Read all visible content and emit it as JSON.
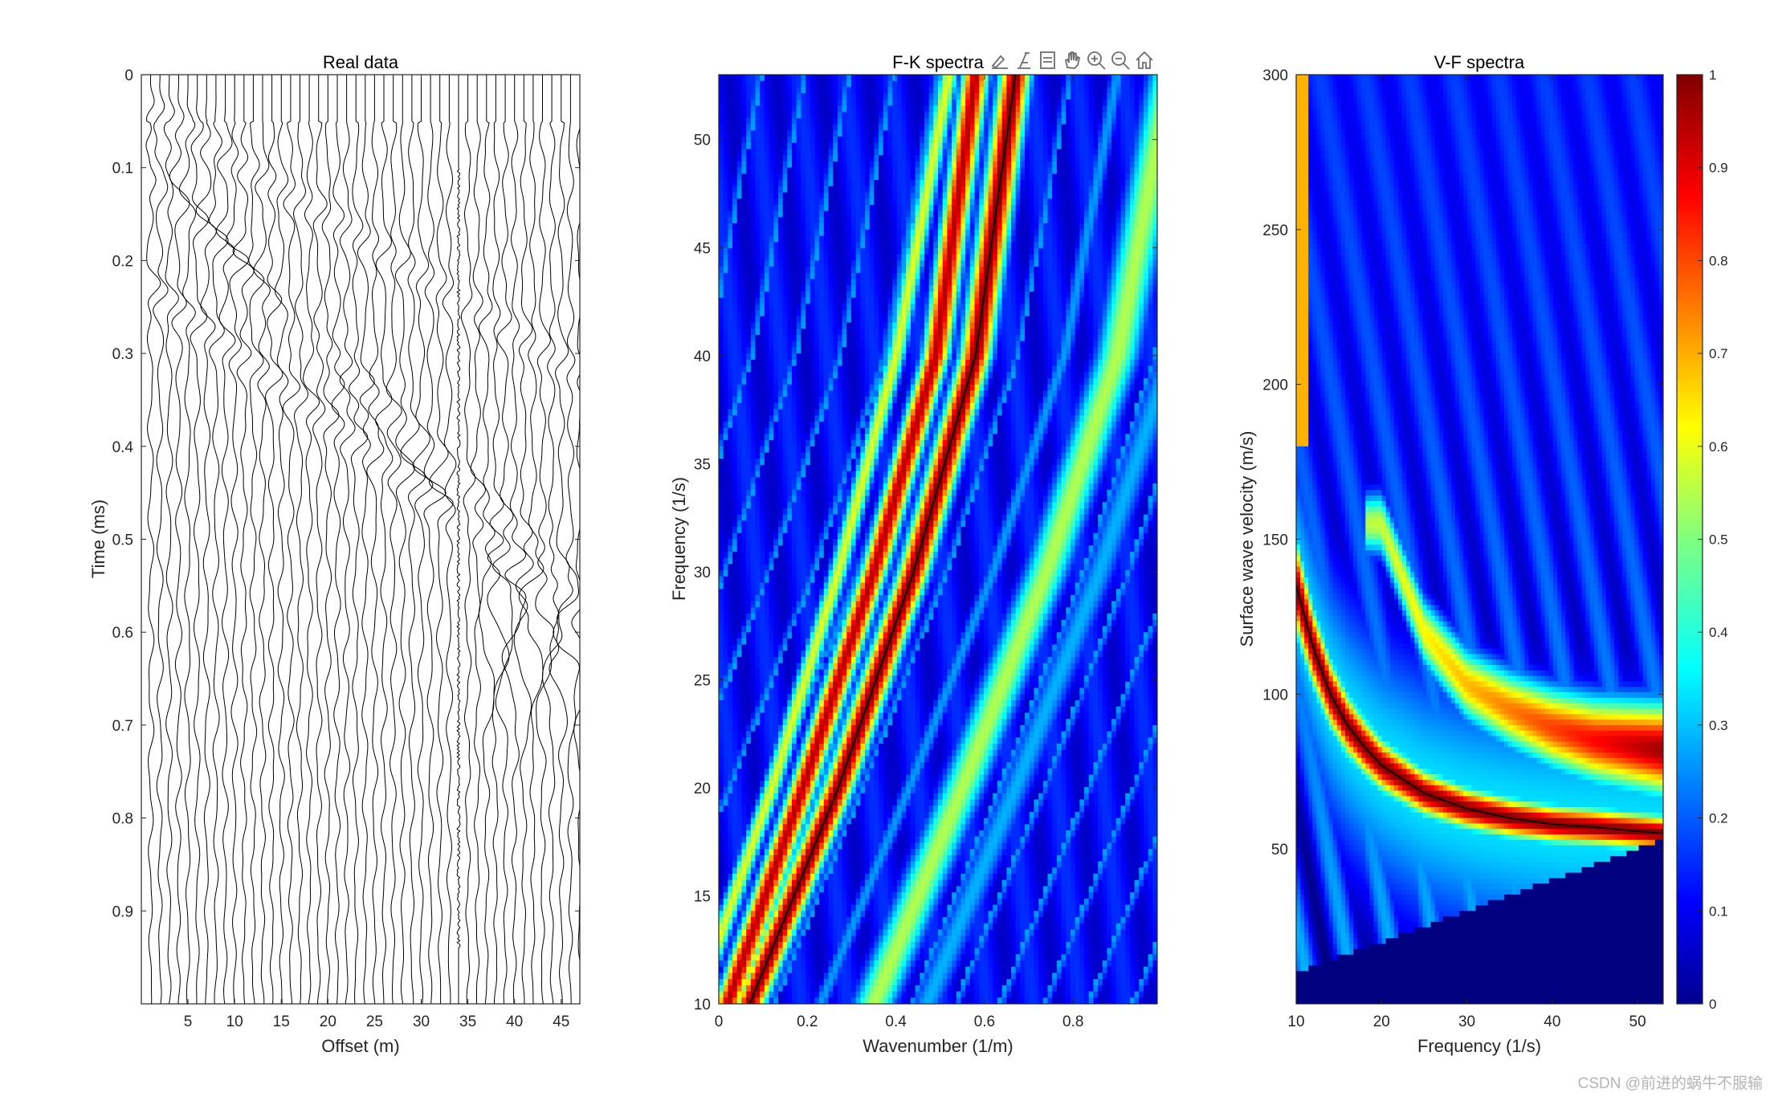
{
  "figure": {
    "watermark": "CSDN @前进的蜗牛不服输"
  },
  "toolbar": {
    "icons": [
      "brush-icon",
      "data-tip-icon",
      "legend-icon",
      "pan-hand-icon",
      "zoom-in-icon",
      "zoom-out-icon",
      "home-icon"
    ]
  },
  "chart_data": [
    {
      "type": "seismic-wiggle",
      "title": "Real data",
      "xlabel": "Offset (m)",
      "ylabel": "Time (ms)",
      "xlim": [
        0,
        47
      ],
      "ylim": [
        1.0,
        0
      ],
      "xticks": [
        5,
        10,
        15,
        20,
        25,
        30,
        35,
        40,
        45
      ],
      "xtick_labels": [
        "5",
        "10",
        "15",
        "20",
        "25",
        "30",
        "35",
        "40",
        "45"
      ],
      "yticks": [
        0,
        0.1,
        0.2,
        0.3,
        0.4,
        0.5,
        0.6,
        0.7,
        0.8,
        0.9
      ],
      "ytick_labels": [
        "0",
        "0.1",
        "0.2",
        "0.3",
        "0.4",
        "0.5",
        "0.6",
        "0.7",
        "0.8",
        "0.9"
      ],
      "trace_count": 47,
      "noisy_trace_offset": 34,
      "grid": false
    },
    {
      "type": "heatmap",
      "title": "F-K spectra",
      "xlabel": "Wavenumber (1/m)",
      "ylabel": "Frequency (1/s)",
      "xlim": [
        0,
        0.99
      ],
      "ylim": [
        10,
        53
      ],
      "xticks": [
        0,
        0.2,
        0.4,
        0.6,
        0.8
      ],
      "xtick_labels": [
        "0",
        "0.2",
        "0.4",
        "0.6",
        "0.8"
      ],
      "yticks": [
        10,
        15,
        20,
        25,
        30,
        35,
        40,
        45,
        50
      ],
      "ytick_labels": [
        "10",
        "15",
        "20",
        "25",
        "30",
        "35",
        "40",
        "45",
        "50"
      ],
      "colormap": "jet",
      "ridges": [
        {
          "points": [
            [
              0.07,
              10
            ],
            [
              0.27,
              20
            ],
            [
              0.44,
              30
            ],
            [
              0.58,
              40
            ],
            [
              0.67,
              53
            ]
          ]
        },
        {
          "points": [
            [
              0.02,
              10
            ],
            [
              0.19,
              20
            ],
            [
              0.35,
              30
            ],
            [
              0.49,
              40
            ],
            [
              0.58,
              53
            ]
          ]
        },
        {
          "points": [
            [
              -0.05,
              10
            ],
            [
              0.12,
              20
            ],
            [
              0.27,
              30
            ],
            [
              0.4,
              40
            ],
            [
              0.52,
              53
            ]
          ]
        },
        {
          "points": [
            [
              0.35,
              10
            ],
            [
              0.55,
              20
            ],
            [
              0.74,
              30
            ],
            [
              0.9,
              40
            ],
            [
              1.02,
              53
            ]
          ]
        }
      ],
      "picked_curve": [
        [
          0.07,
          10
        ],
        [
          0.27,
          20
        ],
        [
          0.44,
          30
        ],
        [
          0.58,
          40
        ],
        [
          0.67,
          53
        ]
      ],
      "grid": false
    },
    {
      "type": "heatmap",
      "title": "V-F spectra",
      "xlabel": "Frequency (1/s)",
      "ylabel": "Surface wave velocity (m/s)",
      "xlim": [
        10,
        53
      ],
      "ylim": [
        0,
        300
      ],
      "xticks": [
        10,
        20,
        30,
        40,
        50
      ],
      "xtick_labels": [
        "10",
        "20",
        "30",
        "40",
        "50"
      ],
      "yticks": [
        50,
        100,
        150,
        200,
        250,
        300
      ],
      "ytick_labels": [
        "50",
        "100",
        "150",
        "200",
        "250",
        "300"
      ],
      "colormap": "jet",
      "picked_curve": [
        [
          10,
          135
        ],
        [
          12,
          115
        ],
        [
          14,
          100
        ],
        [
          16,
          90
        ],
        [
          18,
          83
        ],
        [
          20,
          77
        ],
        [
          25,
          68
        ],
        [
          30,
          63
        ],
        [
          35,
          60
        ],
        [
          40,
          58
        ],
        [
          45,
          57
        ],
        [
          53,
          55
        ]
      ],
      "secondary_mode": [
        [
          20,
          155
        ],
        [
          25,
          120
        ],
        [
          30,
          103
        ],
        [
          35,
          95
        ],
        [
          40,
          89
        ],
        [
          45,
          85
        ],
        [
          53,
          82
        ]
      ],
      "masked_region_upper_edge": [
        [
          10,
          10
        ],
        [
          53,
          53
        ]
      ],
      "colorbar": {
        "range": [
          0,
          1
        ],
        "ticks": [
          0,
          0.1,
          0.2,
          0.3,
          0.4,
          0.5,
          0.6,
          0.7,
          0.8,
          0.9,
          1
        ],
        "tick_labels": [
          "0",
          "0.1",
          "0.2",
          "0.3",
          "0.4",
          "0.5",
          "0.6",
          "0.7",
          "0.8",
          "0.9",
          "1"
        ],
        "location": "right"
      },
      "grid": false
    }
  ]
}
